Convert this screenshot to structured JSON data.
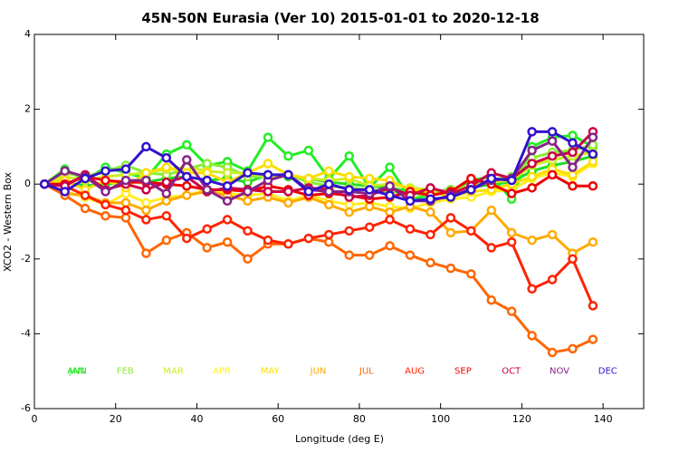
{
  "chart_data": {
    "type": "line",
    "title": "45N-50N Eurasia (Ver 10)   2015-01-01 to 2020-12-18",
    "xlabel": "Longitude (deg E)",
    "ylabel": "XCO2 - Western Box",
    "xlim": [
      0,
      150
    ],
    "ylim": [
      -6,
      4
    ],
    "xticks": [
      0,
      20,
      40,
      60,
      80,
      100,
      120,
      140
    ],
    "yticks": [
      -6,
      -4,
      -2,
      0,
      2,
      4
    ],
    "x": [
      2.5,
      7.5,
      12.5,
      17.5,
      22.5,
      27.5,
      32.5,
      37.5,
      42.5,
      47.5,
      52.5,
      57.5,
      62.5,
      67.5,
      72.5,
      77.5,
      82.5,
      87.5,
      92.5,
      97.5,
      102.5,
      107.5,
      112.5,
      117.5,
      122.5,
      127.5,
      132.5,
      137.5
    ],
    "legend_position": "bottom",
    "series": [
      {
        "name": "ANN",
        "color": "#22dd22",
        "values": [
          0,
          0.05,
          -0.05,
          0,
          0.05,
          0.05,
          0.15,
          0.2,
          0.1,
          0.15,
          0.05,
          0.25,
          0.2,
          0.15,
          0.05,
          0,
          -0.05,
          -0.1,
          -0.2,
          -0.2,
          -0.15,
          -0.1,
          0,
          0.05,
          0.35,
          0.5,
          0.6,
          0.75
        ]
      },
      {
        "name": "JAN",
        "color": "#22ee22",
        "values": [
          0,
          0.4,
          0.1,
          0.45,
          0.3,
          0.15,
          0.8,
          1.05,
          0.5,
          0.6,
          0.35,
          1.25,
          0.75,
          0.9,
          0.15,
          0.75,
          -0.1,
          0.45,
          -0.4,
          -0.3,
          -0.2,
          0.1,
          0.2,
          -0.4,
          1.0,
          1.25,
          1.3,
          1.0
        ]
      },
      {
        "name": "FEB",
        "color": "#88ee33",
        "values": [
          0,
          0.3,
          0.2,
          0.35,
          0.5,
          0.3,
          0.25,
          0.4,
          0.55,
          0.45,
          0.2,
          0.2,
          0.25,
          0.05,
          -0.05,
          -0.1,
          -0.15,
          -0.2,
          -0.25,
          -0.3,
          -0.15,
          -0.05,
          0.1,
          0.2,
          0.7,
          0.85,
          0.9,
          1.05
        ]
      },
      {
        "name": "MAR",
        "color": "#ccee22",
        "values": [
          0,
          0.2,
          0.1,
          0.2,
          0.25,
          0.3,
          0.4,
          0.45,
          0.35,
          0.3,
          0.3,
          0.2,
          0.25,
          0.15,
          0.1,
          0.15,
          -0.05,
          0,
          -0.1,
          -0.15,
          -0.2,
          -0.05,
          0.05,
          0.1,
          0.5,
          0.65,
          0.75,
          0.85
        ]
      },
      {
        "name": "APR",
        "color": "#ffee22",
        "values": [
          0,
          -0.2,
          -0.35,
          -0.55,
          -0.25,
          -0.5,
          -0.35,
          -0.3,
          -0.15,
          -0.25,
          -0.3,
          -0.25,
          -0.45,
          -0.3,
          -0.45,
          -0.55,
          -0.5,
          -0.6,
          -0.65,
          -0.5,
          -0.4,
          -0.35,
          -0.2,
          -0.15,
          0.15,
          0.3,
          0.2,
          0.55
        ]
      },
      {
        "name": "MAY",
        "color": "#ffdd00",
        "values": [
          0,
          0.1,
          -0.15,
          0.1,
          -0.1,
          0.3,
          0.45,
          0.3,
          0.3,
          0.05,
          0.3,
          0.55,
          0.25,
          0.15,
          0.35,
          0.2,
          0.15,
          0.1,
          -0.15,
          -0.2,
          -0.35,
          -0.2,
          -0.15,
          0,
          0.2,
          0.4,
          0.25,
          0.6
        ]
      },
      {
        "name": "JUN",
        "color": "#ffaa00",
        "values": [
          0,
          -0.25,
          -0.3,
          -0.5,
          -0.5,
          -0.7,
          -0.45,
          -0.3,
          -0.2,
          -0.3,
          -0.45,
          -0.35,
          -0.5,
          -0.35,
          -0.55,
          -0.75,
          -0.6,
          -0.75,
          -0.6,
          -0.75,
          -1.3,
          -1.25,
          -0.7,
          -1.3,
          -1.5,
          -1.35,
          -1.85,
          -1.55
        ]
      },
      {
        "name": "JUL",
        "color": "#ff6600",
        "values": [
          0,
          -0.3,
          -0.65,
          -0.85,
          -0.9,
          -1.85,
          -1.5,
          -1.3,
          -1.7,
          -1.55,
          -2.0,
          -1.6,
          -1.6,
          -1.45,
          -1.55,
          -1.9,
          -1.9,
          -1.65,
          -1.9,
          -2.1,
          -2.25,
          -2.4,
          -3.1,
          -3.4,
          -4.05,
          -4.5,
          -4.4,
          -4.15
        ]
      },
      {
        "name": "AUG",
        "color": "#ff2200",
        "values": [
          0,
          -0.05,
          -0.3,
          -0.55,
          -0.7,
          -0.95,
          -0.85,
          -1.45,
          -1.2,
          -0.95,
          -1.25,
          -1.5,
          -1.6,
          -1.45,
          -1.35,
          -1.25,
          -1.15,
          -0.95,
          -1.2,
          -1.35,
          -0.9,
          -1.25,
          -1.7,
          -1.55,
          -2.8,
          -2.55,
          -2.0,
          -3.25
        ]
      },
      {
        "name": "SEP",
        "color": "#ee0000",
        "values": [
          0,
          0,
          0.2,
          0.1,
          0.05,
          0.05,
          0,
          -0.05,
          -0.15,
          -0.15,
          -0.2,
          -0.05,
          -0.15,
          -0.3,
          -0.25,
          -0.3,
          -0.4,
          -0.35,
          -0.2,
          -0.3,
          -0.2,
          0.15,
          0,
          -0.25,
          -0.1,
          0.25,
          -0.05,
          -0.05
        ]
      },
      {
        "name": "OCT",
        "color": "#cc0044",
        "values": [
          0,
          -0.05,
          0.25,
          -0.15,
          0,
          -0.15,
          0.05,
          0.2,
          -0.2,
          -0.1,
          -0.15,
          -0.2,
          -0.2,
          -0.1,
          -0.15,
          -0.35,
          -0.3,
          -0.1,
          -0.3,
          -0.1,
          -0.25,
          -0.05,
          0.3,
          0.15,
          0.55,
          0.75,
          0.85,
          1.4
        ]
      },
      {
        "name": "NOV",
        "color": "#882288",
        "values": [
          0,
          0.35,
          0.2,
          -0.2,
          0.1,
          0.1,
          -0.25,
          0.65,
          -0.15,
          -0.45,
          -0.2,
          0.1,
          0.25,
          -0.15,
          -0.2,
          -0.2,
          -0.25,
          -0.05,
          -0.45,
          -0.45,
          -0.3,
          -0.15,
          0.1,
          0.15,
          0.9,
          1.15,
          0.45,
          1.25
        ]
      },
      {
        "name": "DEC",
        "color": "#3311cc",
        "values": [
          0,
          -0.2,
          0.15,
          0.35,
          0.4,
          1.0,
          0.7,
          0.2,
          0.1,
          -0.05,
          0.3,
          0.25,
          0.25,
          -0.2,
          0,
          -0.15,
          -0.15,
          -0.3,
          -0.45,
          -0.4,
          -0.35,
          -0.15,
          0.15,
          0.1,
          1.4,
          1.4,
          1.1,
          0.8
        ]
      }
    ]
  }
}
